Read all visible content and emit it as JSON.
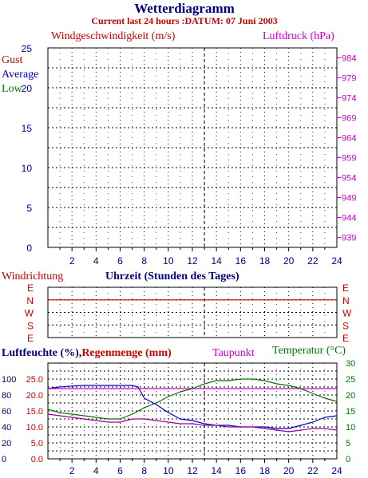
{
  "title": "Wetterdiagramm",
  "subtitle": "Current last 24 hours :DATUM: 07 Juni 2003",
  "colors": {
    "navy": "#000080",
    "red": "#cc0000",
    "green": "#007700",
    "magenta": "#cc00cc",
    "blue": "#0000cc",
    "purple": "#990099"
  },
  "wind_panel": {
    "left_title": "Windgeschwindigkeit (m/s)",
    "right_title": "Luftdruck (hPa)",
    "legend": [
      "Gust",
      "Average",
      "Low"
    ],
    "y_ticks": [
      "0",
      "5",
      "10",
      "15",
      "20",
      "25"
    ],
    "right_ticks": [
      "939",
      "944",
      "949",
      "954",
      "959",
      "964",
      "969",
      "974",
      "979",
      "984"
    ]
  },
  "x_ticks": [
    "2",
    "4",
    "6",
    "8",
    "10",
    "12",
    "14",
    "16",
    "18",
    "20",
    "22",
    "24"
  ],
  "direction_panel": {
    "title": "Windrichtung",
    "xlabel": "Uhrzeit (Stunden des Tages)",
    "labels": [
      "E",
      "N",
      "W",
      "S",
      "E"
    ]
  },
  "bottom_panel": {
    "title_left": "Luftfeuchte (%),",
    "title_rain": "Regenmenge (mm)",
    "title_dew": "Taupunkt",
    "title_temp": "Temperatur (",
    "title_temp_unit": "°C",
    "title_temp_close": ")",
    "humidity_ticks": [
      "0",
      "20",
      "40",
      "60",
      "80",
      "100"
    ],
    "rain_ticks": [
      "0.0",
      "5.0",
      "10.0",
      "15.0",
      "20.0",
      "25.0"
    ],
    "temp_ticks": [
      "0",
      "5",
      "10",
      "15",
      "20",
      "25",
      "30"
    ]
  },
  "chart_data": [
    {
      "type": "line",
      "title": "Windgeschwindigkeit (m/s)",
      "xlim": [
        0,
        24
      ],
      "ylim": [
        0,
        25
      ],
      "y2lim": [
        936.5,
        986.5
      ],
      "grid": true,
      "series": []
    },
    {
      "type": "line",
      "title": "Windrichtung",
      "xlabel": "Uhrzeit (Stunden des Tages)",
      "xlim": [
        0,
        24
      ],
      "y_categories": [
        "E",
        "N",
        "W",
        "S",
        "E"
      ],
      "series": [
        {
          "name": "",
          "color": "#cc0000",
          "x": [
            0,
            24
          ],
          "y": [
            1,
            1
          ]
        }
      ]
    },
    {
      "type": "line",
      "xlim": [
        0,
        24
      ],
      "ylim": [
        0,
        30
      ],
      "grid": true,
      "series": [
        {
          "name": "Luftfeuchte (%)",
          "color": "#0000cc",
          "x": [
            0,
            1,
            2,
            3,
            4,
            5,
            6,
            7,
            7.5,
            8,
            9,
            10,
            11,
            12,
            13,
            14,
            15,
            16,
            17,
            18,
            19,
            20,
            21,
            22,
            23,
            24
          ],
          "y": [
            22,
            22.5,
            22.8,
            23,
            23,
            23,
            23,
            23,
            22.5,
            19,
            17,
            14.5,
            12.5,
            12,
            11,
            10.5,
            10.5,
            10,
            10,
            10,
            9.5,
            9.5,
            10.5,
            11.5,
            13,
            13.5
          ]
        },
        {
          "name": "Regenmenge (mm)",
          "color": "#cc00cc",
          "x": [
            0,
            24
          ],
          "y": [
            22,
            22
          ]
        },
        {
          "name": "Temperatur (°C)",
          "color": "#007700",
          "x": [
            0,
            1,
            2,
            3,
            4,
            5,
            6,
            7,
            8,
            9,
            10,
            11,
            12,
            13,
            14,
            15,
            16,
            17,
            18,
            19,
            20,
            21,
            22,
            23,
            24
          ],
          "y": [
            15.5,
            14.5,
            14,
            13.5,
            13,
            12.5,
            12.5,
            14,
            16,
            17.5,
            19.5,
            21,
            22,
            23.5,
            24.5,
            24.5,
            25,
            25,
            24.5,
            23.5,
            23,
            22,
            20.5,
            19,
            18
          ]
        },
        {
          "name": "Taupunkt",
          "color": "#990099",
          "x": [
            0,
            1,
            2,
            3,
            4,
            5,
            6,
            7,
            8,
            9,
            10,
            11,
            12,
            13,
            14,
            15,
            16,
            17,
            18,
            19,
            20,
            21,
            22,
            23,
            24
          ],
          "y": [
            14,
            13.5,
            13,
            12.5,
            12,
            11.5,
            11.5,
            12.5,
            12.5,
            12,
            11.5,
            11,
            11,
            10.5,
            10.5,
            10,
            10,
            10,
            9.5,
            9,
            8.5,
            9,
            9.5,
            9.5,
            9
          ]
        }
      ]
    }
  ]
}
